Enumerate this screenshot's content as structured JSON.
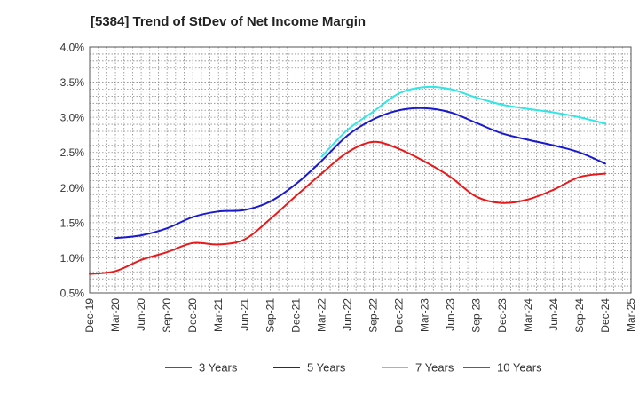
{
  "chart_data": {
    "type": "line",
    "title": "[5384]  Trend of StDev of Net Income Margin",
    "xlabel": "",
    "ylabel": "",
    "x_ticks": [
      "Dec-19",
      "Mar-20",
      "Jun-20",
      "Sep-20",
      "Dec-20",
      "Mar-21",
      "Jun-21",
      "Sep-21",
      "Dec-21",
      "Mar-22",
      "Jun-22",
      "Sep-22",
      "Dec-22",
      "Mar-23",
      "Jun-23",
      "Sep-23",
      "Dec-23",
      "Mar-24",
      "Jun-24",
      "Sep-24",
      "Dec-24",
      "Mar-25"
    ],
    "y_ticks": [
      "0.5%",
      "1.0%",
      "1.5%",
      "2.0%",
      "2.5%",
      "3.0%",
      "3.5%",
      "4.0%"
    ],
    "ylim": [
      0.5,
      4.0
    ],
    "grid": true,
    "legend_position": "bottom",
    "series": [
      {
        "name": "3 Years",
        "color": "#e8191b",
        "x": [
          "Dec-19",
          "Mar-20",
          "Jun-20",
          "Sep-20",
          "Dec-20",
          "Mar-21",
          "Jun-21",
          "Sep-21",
          "Dec-21",
          "Mar-22",
          "Jun-22",
          "Sep-22",
          "Dec-22",
          "Mar-23",
          "Jun-23",
          "Sep-23",
          "Dec-23",
          "Mar-24",
          "Jun-24",
          "Sep-24",
          "Dec-24"
        ],
        "values": [
          0.77,
          0.81,
          0.97,
          1.08,
          1.21,
          1.19,
          1.26,
          1.55,
          1.88,
          2.2,
          2.5,
          2.65,
          2.55,
          2.37,
          2.15,
          1.87,
          1.78,
          1.83,
          1.97,
          2.15,
          2.2
        ]
      },
      {
        "name": "5 Years",
        "color": "#1a1acd",
        "x": [
          "Mar-20",
          "Jun-20",
          "Sep-20",
          "Dec-20",
          "Mar-21",
          "Jun-21",
          "Sep-21",
          "Dec-21",
          "Mar-22",
          "Jun-22",
          "Sep-22",
          "Dec-22",
          "Mar-23",
          "Jun-23",
          "Sep-23",
          "Dec-23",
          "Mar-24",
          "Jun-24",
          "Sep-24",
          "Dec-24"
        ],
        "values": [
          1.28,
          1.32,
          1.42,
          1.58,
          1.66,
          1.68,
          1.8,
          2.05,
          2.38,
          2.74,
          2.97,
          3.1,
          3.13,
          3.07,
          2.92,
          2.77,
          2.68,
          2.6,
          2.5,
          2.34
        ]
      },
      {
        "name": "7 Years",
        "color": "#33e6e6",
        "x": [
          "Mar-22",
          "Jun-22",
          "Sep-22",
          "Dec-22",
          "Mar-23",
          "Jun-23",
          "Sep-23",
          "Dec-23",
          "Mar-24",
          "Jun-24",
          "Sep-24",
          "Dec-24"
        ],
        "values": [
          2.44,
          2.82,
          3.08,
          3.34,
          3.43,
          3.4,
          3.28,
          3.18,
          3.12,
          3.07,
          3.0,
          2.91
        ]
      },
      {
        "name": "10 Years",
        "color": "#1f8a1f",
        "x": [],
        "values": []
      }
    ]
  }
}
